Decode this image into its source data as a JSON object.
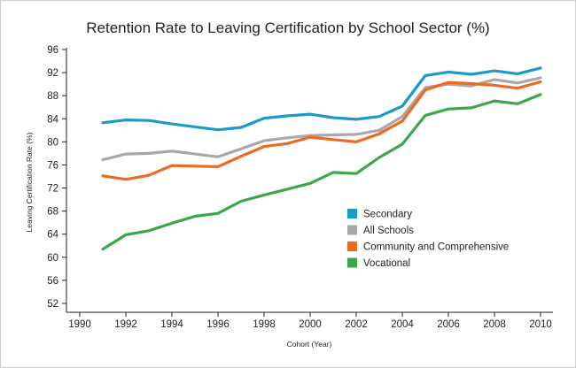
{
  "chart_data": {
    "type": "line",
    "title": "Retention Rate to Leaving Certification by School Sector (%)",
    "xlabel": "Cohort (Year)",
    "ylabel": "Leaving Certification Rate (%)",
    "xlim": [
      1989,
      2010.5
    ],
    "ylim": [
      50,
      96
    ],
    "x_ticks": [
      1990,
      1992,
      1994,
      1996,
      1998,
      2000,
      2002,
      2004,
      2006,
      2008,
      2010
    ],
    "y_ticks": [
      52,
      56,
      60,
      64,
      68,
      72,
      76,
      80,
      84,
      88,
      92,
      96
    ],
    "x": [
      1991,
      1992,
      1993,
      1994,
      1995,
      1996,
      1997,
      1998,
      1999,
      2000,
      2001,
      2002,
      2003,
      2004,
      2005,
      2006,
      2007,
      2008,
      2009,
      2010
    ],
    "grid": false,
    "legend_position": "center-right",
    "series": [
      {
        "name": "Secondary",
        "color": "#1a9bc7",
        "values": [
          83.3,
          83.8,
          83.7,
          83.1,
          82.6,
          82.1,
          82.5,
          84.1,
          84.5,
          84.8,
          84.2,
          83.9,
          84.4,
          86.2,
          91.5,
          92.1,
          91.7,
          92.3,
          91.8,
          92.8
        ]
      },
      {
        "name": "All Schools",
        "color": "#a8a8a8",
        "values": [
          76.9,
          77.9,
          78.0,
          78.4,
          77.9,
          77.4,
          78.8,
          80.2,
          80.7,
          81.1,
          81.2,
          81.3,
          82.0,
          84.4,
          89.4,
          90.0,
          89.7,
          90.8,
          90.2,
          91.1
        ]
      },
      {
        "name": "Community and Comprehensive",
        "color": "#ee6a22",
        "values": [
          74.1,
          73.5,
          74.2,
          75.9,
          75.8,
          75.7,
          77.5,
          79.2,
          79.7,
          80.8,
          80.4,
          80.0,
          81.4,
          83.6,
          89.0,
          90.3,
          90.1,
          89.8,
          89.3,
          90.4
        ]
      },
      {
        "name": "Vocational",
        "color": "#3aa84a",
        "values": [
          61.4,
          63.9,
          64.6,
          65.9,
          67.1,
          67.6,
          69.7,
          70.8,
          71.8,
          72.8,
          74.7,
          74.5,
          77.3,
          79.6,
          84.6,
          85.7,
          85.9,
          87.1,
          86.6,
          88.2
        ]
      }
    ]
  }
}
